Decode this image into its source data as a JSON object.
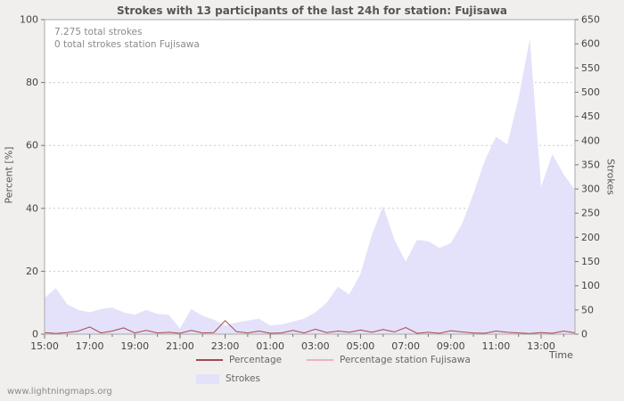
{
  "footer": {
    "site": "www.lightningmaps.org"
  },
  "colors": {
    "page_bg": "#f0efee",
    "plot_bg": "#ffffff",
    "grid": "#cccccc",
    "frame": "#aaaaaa",
    "strokes_area": "#e4e1fa",
    "percentage_line": "#a84848",
    "station_line": "#eab4ba"
  },
  "chart_data": {
    "type": "area",
    "title": "Strokes with 13 participants of the last 24h for station: Fujisawa",
    "xlabel": "Time",
    "ylabel_left": "Percent  [%]",
    "ylabel_right": "Strokes",
    "annotations": [
      "7.275 total strokes",
      "0 total strokes station Fujisawa"
    ],
    "x_tick_labels": [
      "15:00",
      "17:00",
      "19:00",
      "21:00",
      "23:00",
      "01:00",
      "03:00",
      "05:00",
      "07:00",
      "09:00",
      "11:00",
      "13:00"
    ],
    "x_tick_indices": [
      0,
      4,
      8,
      12,
      16,
      20,
      24,
      28,
      32,
      36,
      40,
      44
    ],
    "left_axis": {
      "min": 0,
      "max": 100,
      "ticks": [
        0,
        20,
        40,
        60,
        80,
        100
      ]
    },
    "right_axis": {
      "min": 0,
      "max": 650,
      "ticks": [
        0,
        50,
        100,
        150,
        200,
        250,
        300,
        350,
        400,
        450,
        500,
        550,
        600,
        650
      ]
    },
    "grid": true,
    "legend_position": "bottom",
    "series": [
      {
        "name": "Strokes",
        "type": "area",
        "axis": "right",
        "color": "#e4e1fa",
        "values": [
          75,
          95,
          62,
          50,
          45,
          52,
          55,
          45,
          40,
          50,
          42,
          40,
          12,
          52,
          38,
          30,
          18,
          24,
          28,
          32,
          18,
          20,
          26,
          32,
          45,
          65,
          98,
          82,
          125,
          205,
          265,
          195,
          150,
          195,
          192,
          178,
          188,
          228,
          290,
          358,
          408,
          392,
          487,
          610,
          305,
          372,
          330,
          298
        ]
      },
      {
        "name": "Percentage",
        "type": "line",
        "axis": "left",
        "color": "#a84848",
        "values": [
          0.5,
          0.2,
          0.5,
          1.0,
          2.3,
          0.4,
          1.0,
          2.0,
          0.4,
          1.2,
          0.4,
          0.6,
          0.3,
          1.2,
          0.4,
          0.5,
          4.3,
          0.8,
          0.4,
          1.0,
          0.3,
          0.4,
          1.2,
          0.4,
          1.6,
          0.5,
          1.0,
          0.6,
          1.3,
          0.6,
          1.5,
          0.7,
          2.1,
          0.3,
          0.6,
          0.3,
          1.1,
          0.7,
          0.4,
          0.3,
          1.0,
          0.6,
          0.4,
          0.2,
          0.5,
          0.3,
          1.0,
          0.4
        ]
      },
      {
        "name": "Percentage station Fujisawa",
        "type": "line",
        "axis": "left",
        "color": "#eab4ba",
        "values": [
          0,
          0,
          0,
          0,
          0,
          0,
          0,
          0,
          0,
          0,
          0,
          0,
          0,
          0,
          0,
          0,
          0,
          0,
          0,
          0,
          0,
          0,
          0,
          0,
          0,
          0,
          0,
          0,
          0,
          0,
          0,
          0,
          0,
          0,
          0,
          0,
          0,
          0,
          0,
          0,
          0,
          0,
          0,
          0,
          0,
          0,
          0,
          0
        ]
      }
    ],
    "legend": [
      {
        "label": "Percentage",
        "color": "#a84848",
        "swatch": "line"
      },
      {
        "label": "Percentage station Fujisawa",
        "color": "#eab4ba",
        "swatch": "line"
      },
      {
        "label": "Strokes",
        "color": "#e4e1fa",
        "swatch": "area"
      }
    ]
  }
}
